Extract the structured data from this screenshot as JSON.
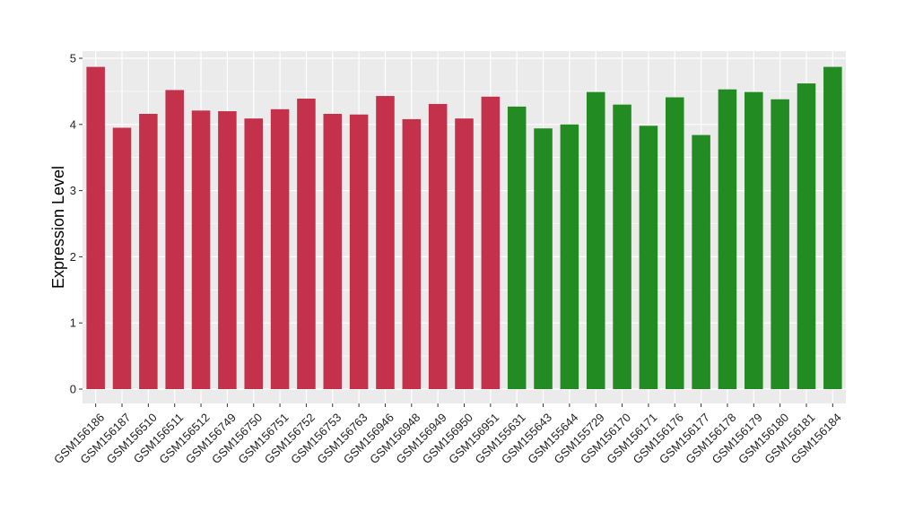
{
  "chart_data": {
    "type": "bar",
    "title": "",
    "xlabel": "",
    "ylabel": "Expression Level",
    "ylim": [
      0,
      5
    ],
    "yticks": [
      0,
      1,
      2,
      3,
      4,
      5
    ],
    "grid": true,
    "categories": [
      "GSM156186",
      "GSM156187",
      "GSM156510",
      "GSM156511",
      "GSM156512",
      "GSM156749",
      "GSM156750",
      "GSM156751",
      "GSM156752",
      "GSM156753",
      "GSM156763",
      "GSM156946",
      "GSM156948",
      "GSM156949",
      "GSM156950",
      "GSM156951",
      "GSM155631",
      "GSM155643",
      "GSM155644",
      "GSM155729",
      "GSM156170",
      "GSM156171",
      "GSM156176",
      "GSM156177",
      "GSM156178",
      "GSM156179",
      "GSM156180",
      "GSM156181",
      "GSM156184"
    ],
    "values": [
      4.87,
      3.95,
      4.16,
      4.52,
      4.21,
      4.2,
      4.09,
      4.23,
      4.39,
      4.16,
      4.15,
      4.43,
      4.08,
      4.31,
      4.09,
      4.42,
      4.27,
      3.94,
      4.0,
      4.49,
      4.3,
      3.98,
      4.41,
      3.84,
      4.53,
      4.49,
      4.38,
      4.62,
      4.87
    ],
    "colors": [
      "#c4314b",
      "#c4314b",
      "#c4314b",
      "#c4314b",
      "#c4314b",
      "#c4314b",
      "#c4314b",
      "#c4314b",
      "#c4314b",
      "#c4314b",
      "#c4314b",
      "#c4314b",
      "#c4314b",
      "#c4314b",
      "#c4314b",
      "#c4314b",
      "#228b22",
      "#228b22",
      "#228b22",
      "#228b22",
      "#228b22",
      "#228b22",
      "#228b22",
      "#228b22",
      "#228b22",
      "#228b22",
      "#228b22",
      "#228b22",
      "#228b22"
    ],
    "panel_background": "#ebebeb",
    "gridline_color": "#ffffff"
  }
}
